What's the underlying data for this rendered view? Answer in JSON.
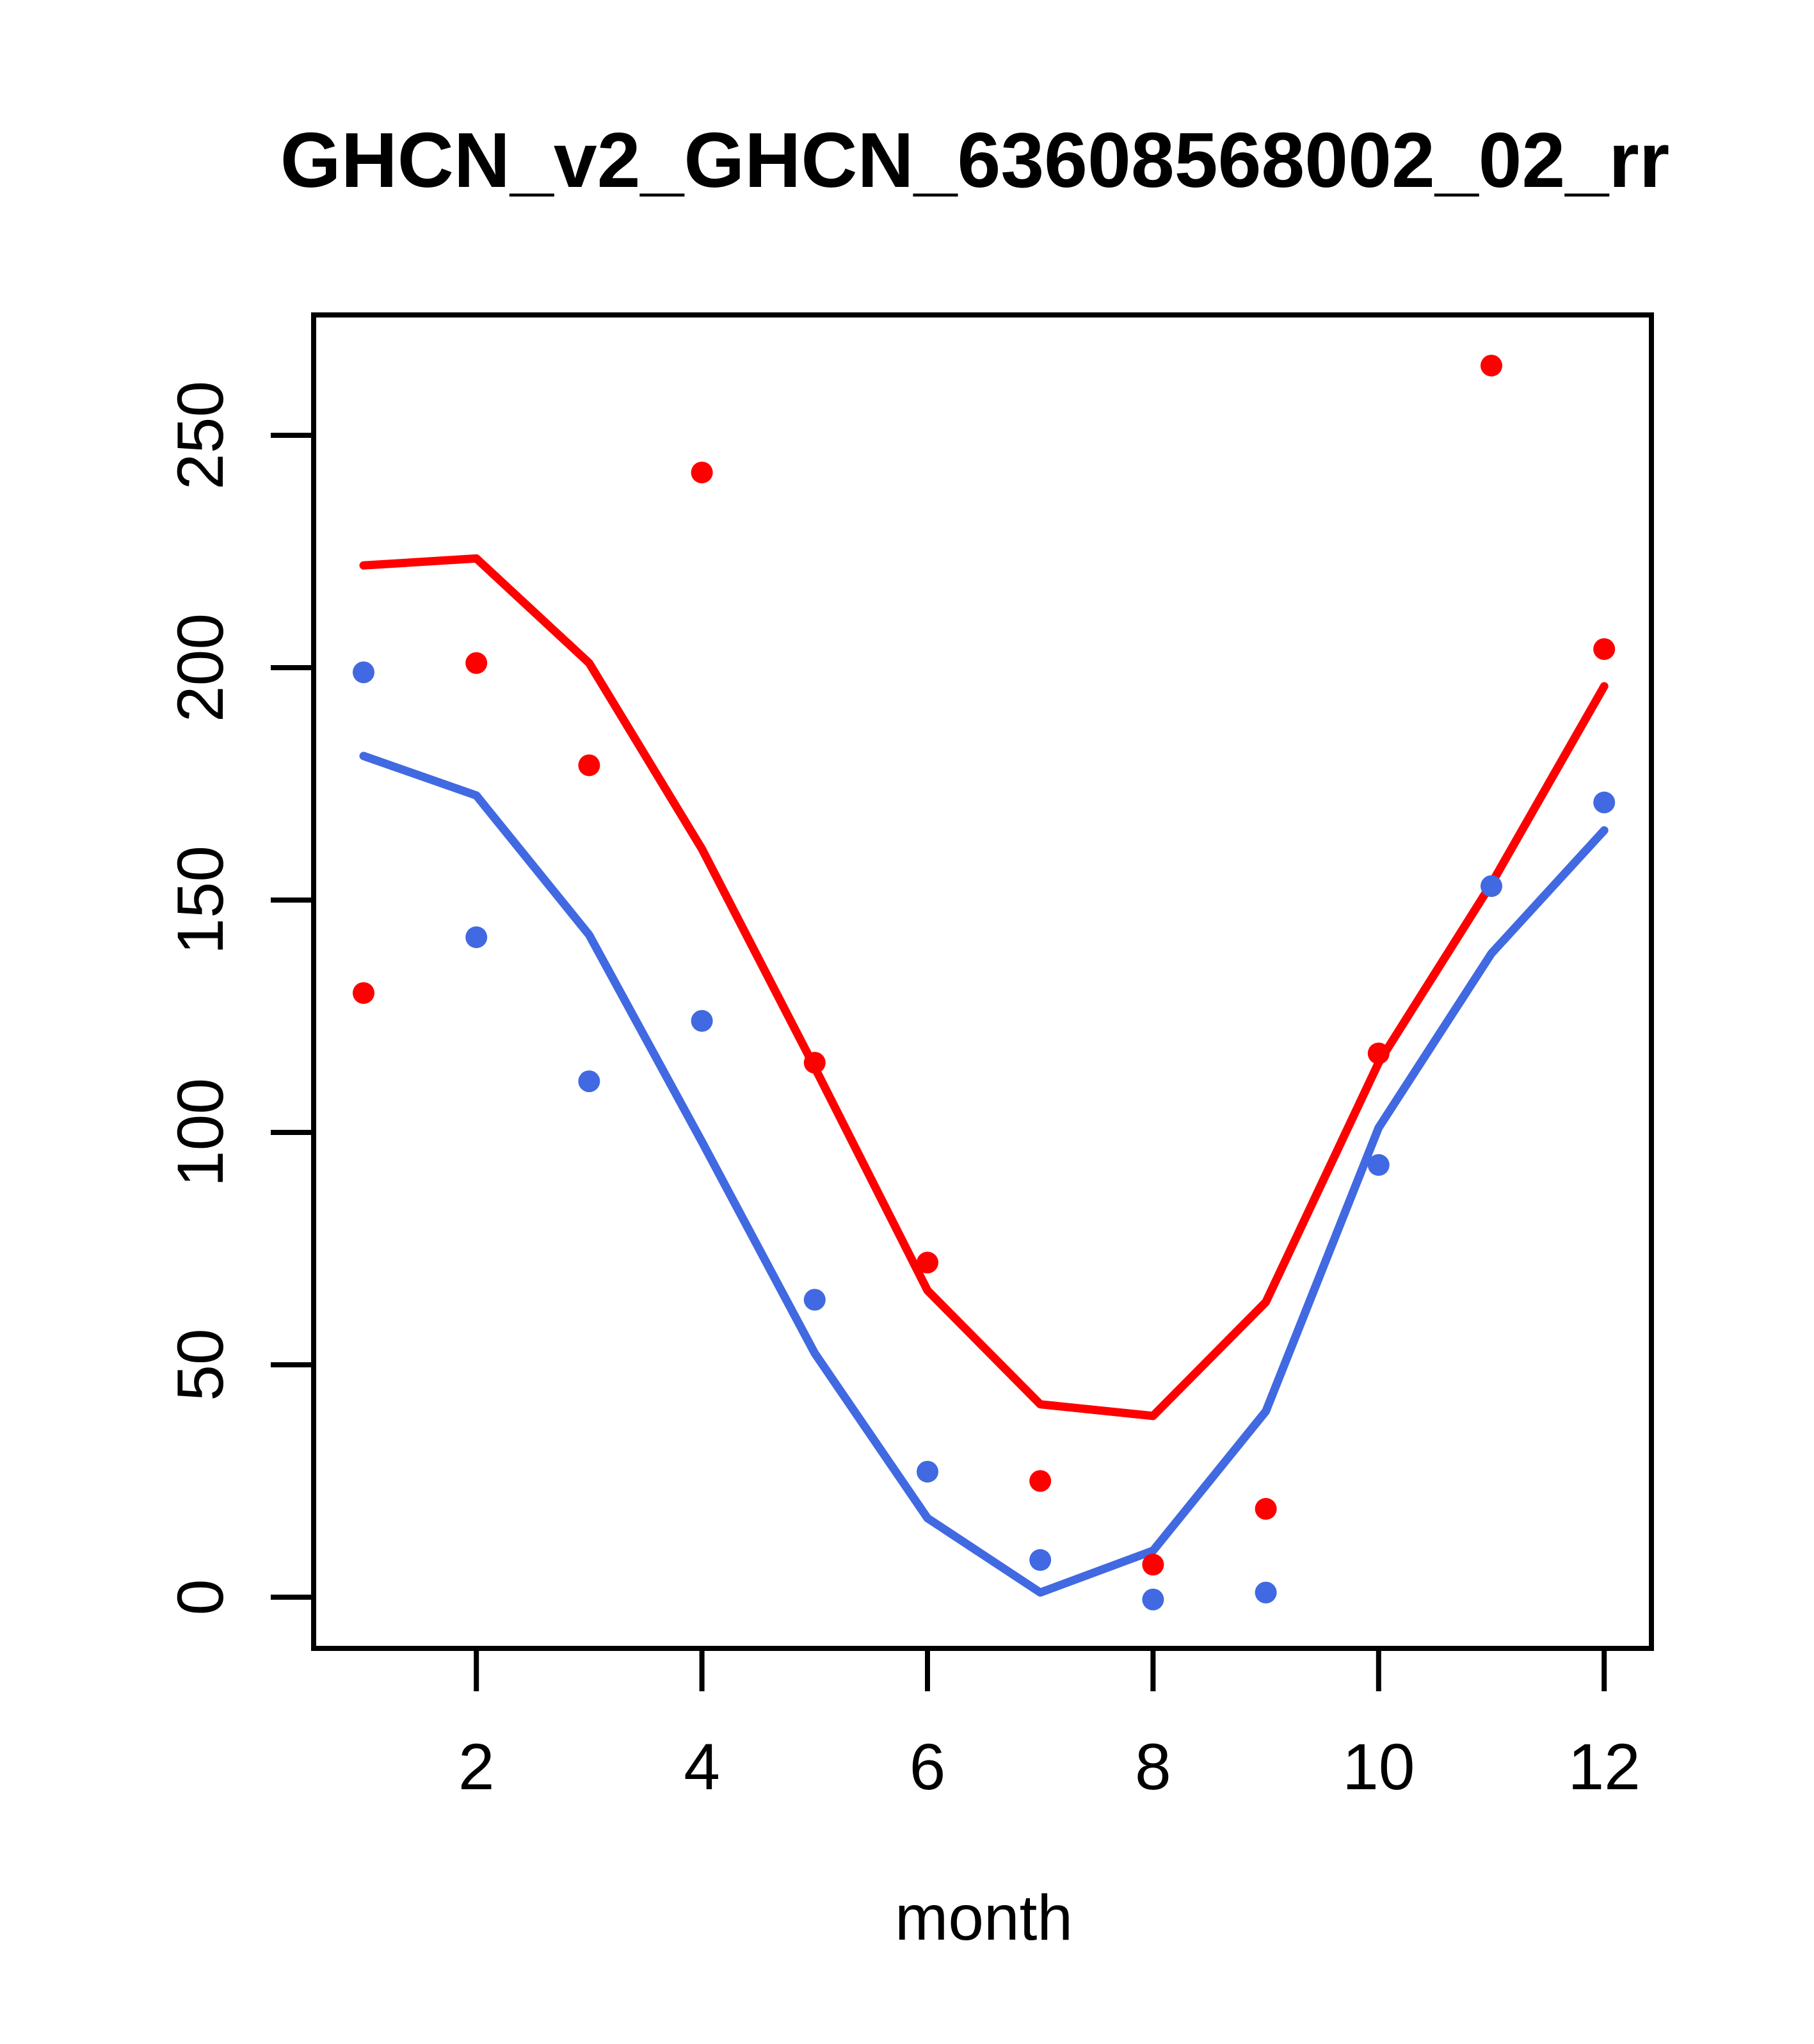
{
  "title": "GHCN_v2_GHCN_63608568002_02_rr",
  "colors": {
    "red": "#FF0000",
    "blue": "#4169E1",
    "axis": "#000000",
    "background": "#FFFFFF"
  },
  "chart_data": {
    "type": "scatter",
    "title": "GHCN_v2_GHCN_63608568002_02_rr",
    "xlabel": "month",
    "ylabel": "",
    "x": [
      1,
      2,
      3,
      4,
      5,
      6,
      7,
      8,
      9,
      10,
      11,
      12
    ],
    "x_ticks": [
      2,
      4,
      6,
      8,
      10,
      12
    ],
    "y_ticks": [
      0,
      50,
      100,
      150,
      200,
      250
    ],
    "xlim": [
      0.56,
      12.44
    ],
    "ylim": [
      -11,
      276
    ],
    "grid": false,
    "legend_position": "none",
    "series": [
      {
        "name": "red-points",
        "kind": "points",
        "color": "#FF0000",
        "values": [
          130,
          201,
          179,
          242,
          115,
          72,
          25,
          7,
          19,
          117,
          265,
          204
        ]
      },
      {
        "name": "blue-points",
        "kind": "points",
        "color": "#4169E1",
        "values": [
          199,
          142,
          111,
          124,
          64,
          27,
          8,
          -0.5,
          1,
          93,
          153,
          171
        ]
      },
      {
        "name": "red-smooth-line",
        "kind": "line",
        "color": "#FF0000",
        "values": [
          222,
          223.5,
          201,
          161,
          114,
          66,
          41.5,
          39,
          63.5,
          115,
          153.5,
          196
        ]
      },
      {
        "name": "blue-smooth-line",
        "kind": "line",
        "color": "#4169E1",
        "values": [
          181,
          172.5,
          142.5,
          98,
          52.5,
          17,
          1,
          10,
          40,
          101,
          138.5,
          165
        ]
      }
    ]
  }
}
